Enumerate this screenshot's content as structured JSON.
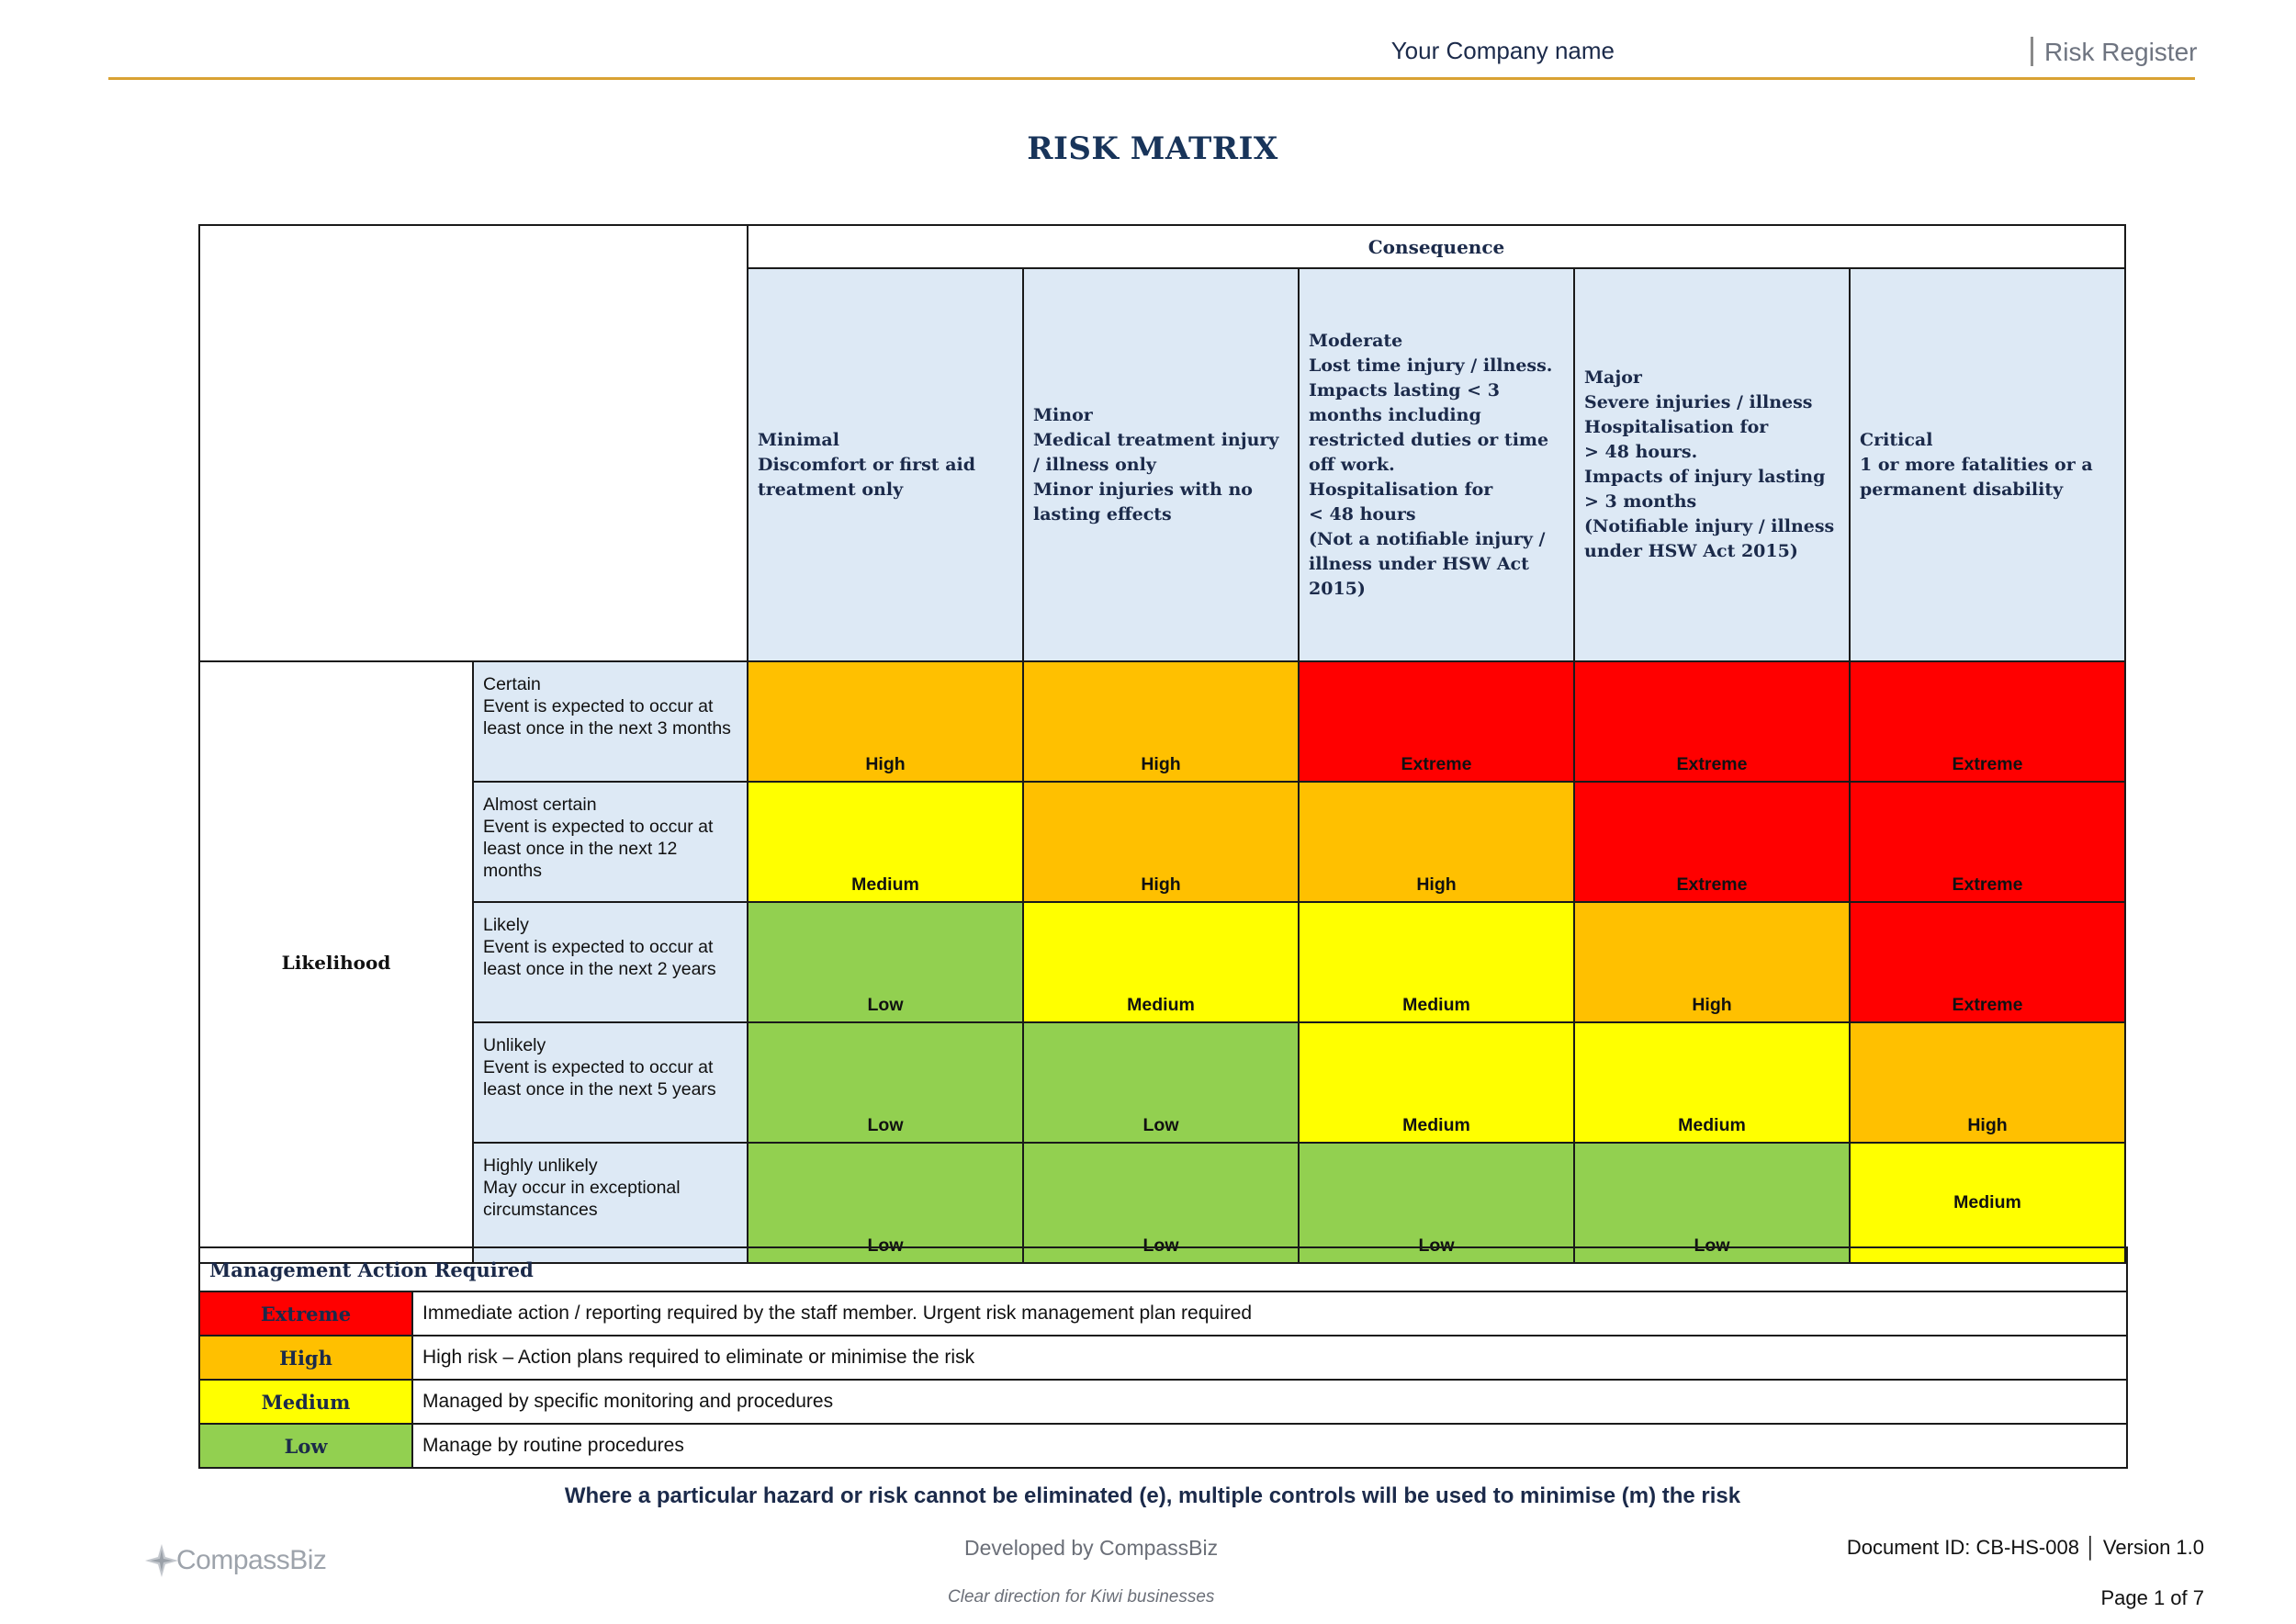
{
  "header": {
    "company": "Your Company name",
    "document_type": "Risk Register"
  },
  "title": "RISK MATRIX",
  "matrix": {
    "consequence_label": "Consequence",
    "likelihood_label": "Likelihood",
    "consequences": [
      "Minimal\nDiscomfort or first aid treatment only",
      "Minor\nMedical treatment injury / illness only\nMinor injuries with no lasting effects",
      "Moderate\nLost time injury / illness.\nImpacts lasting < 3 months including restricted duties or time off work.\nHospitalisation for\n< 48 hours\n(Not a notifiable injury / illness under HSW Act 2015)",
      "Major\nSevere injuries / illness\nHospitalisation for\n> 48 hours.\nImpacts of injury lasting > 3 months\n(Notifiable injury / illness under HSW Act 2015)",
      "Critical\n1 or more fatalities or a permanent disability"
    ],
    "rows": [
      {
        "likelihood": "Certain\nEvent is expected to occur at least once in the next 3 months",
        "ratings": [
          "High",
          "High",
          "Extreme",
          "Extreme",
          "Extreme"
        ]
      },
      {
        "likelihood": "Almost certain\nEvent is expected to occur at least once in the next 12 months",
        "ratings": [
          "Medium",
          "High",
          "High",
          "Extreme",
          "Extreme"
        ]
      },
      {
        "likelihood": "Likely\nEvent is expected to occur at least once in the next 2 years",
        "ratings": [
          "Low",
          "Medium",
          "Medium",
          "High",
          "Extreme"
        ]
      },
      {
        "likelihood": "Unlikely\nEvent is expected to occur at least once in the next 5 years",
        "ratings": [
          "Low",
          "Low",
          "Medium",
          "Medium",
          "High"
        ]
      },
      {
        "likelihood": "Highly unlikely\nMay occur in exceptional circumstances",
        "ratings": [
          "Low",
          "Low",
          "Low",
          "Low",
          "Medium"
        ]
      }
    ]
  },
  "management": {
    "heading": "Management Action Required",
    "levels": [
      {
        "level": "Extreme",
        "action": "Immediate action / reporting required by the staff member. Urgent risk management plan required"
      },
      {
        "level": "High",
        "action": "High risk – Action plans required to eliminate or minimise the risk"
      },
      {
        "level": "Medium",
        "action": "Managed by specific monitoring and procedures"
      },
      {
        "level": "Low",
        "action": "Manage by routine procedures"
      }
    ]
  },
  "note": "Where a particular hazard or risk cannot be eliminated (e), multiple controls will be used to minimise (m) the risk",
  "footer": {
    "logo_text": "CompassBiz",
    "developed_by": "Developed by CompassBiz",
    "tagline": "Clear direction for Kiwi businesses",
    "document_id": "Document ID: CB-HS-008 │ Version 1.0",
    "page": "Page 1 of 7"
  },
  "colors": {
    "Extreme": "#ff0000",
    "High": "#ffc000",
    "Medium": "#ffff00",
    "Low": "#92d050",
    "header_rule": "#d9a233",
    "header_fill": "#dde9f5"
  }
}
